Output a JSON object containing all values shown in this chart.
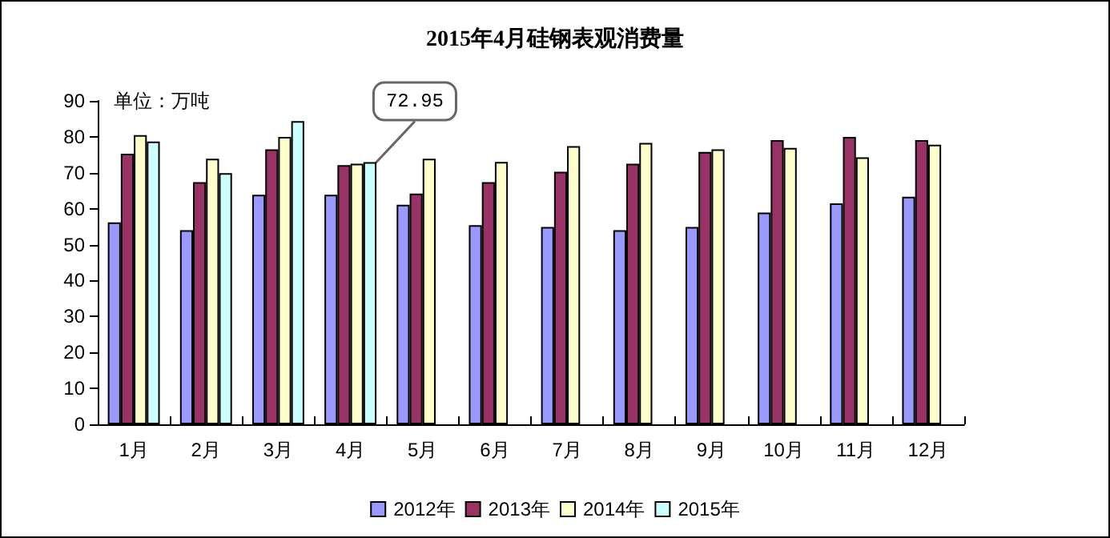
{
  "chart_data": {
    "type": "bar",
    "title": "2015年4月硅钢表观消费量",
    "ylabel": "单位：万吨",
    "categories": [
      "1月",
      "2月",
      "3月",
      "4月",
      "5月",
      "6月",
      "7月",
      "8月",
      "9月",
      "10月",
      "11月",
      "12月"
    ],
    "series": [
      {
        "name": "2012年",
        "color": "#9999ff",
        "values": [
          56.2,
          54.0,
          63.9,
          63.9,
          61.1,
          55.4,
          54.9,
          54.0,
          54.9,
          58.9,
          61.5,
          63.3
        ]
      },
      {
        "name": "2013年",
        "color": "#993366",
        "values": [
          75.3,
          67.4,
          76.5,
          72.1,
          64.2,
          67.4,
          70.3,
          72.5,
          75.8,
          79.1,
          80.0,
          79.1
        ]
      },
      {
        "name": "2014年",
        "color": "#ffffcc",
        "values": [
          80.5,
          73.9,
          80.0,
          72.5,
          73.9,
          73.0,
          77.4,
          78.3,
          76.5,
          76.9,
          74.3,
          77.8
        ]
      },
      {
        "name": "2015年",
        "color": "#ccffff",
        "values": [
          78.7,
          69.9,
          84.4,
          72.95,
          null,
          null,
          null,
          null,
          null,
          null,
          null,
          null
        ],
        "value_labels": [
          null,
          null,
          null,
          "72.95",
          null,
          null,
          null,
          null,
          null,
          null,
          null,
          null
        ]
      }
    ],
    "ylim": [
      0,
      90
    ],
    "yticks": [
      0,
      10,
      20,
      30,
      40,
      50,
      60,
      70,
      80,
      90
    ],
    "grid": false,
    "legend": "bottom"
  }
}
